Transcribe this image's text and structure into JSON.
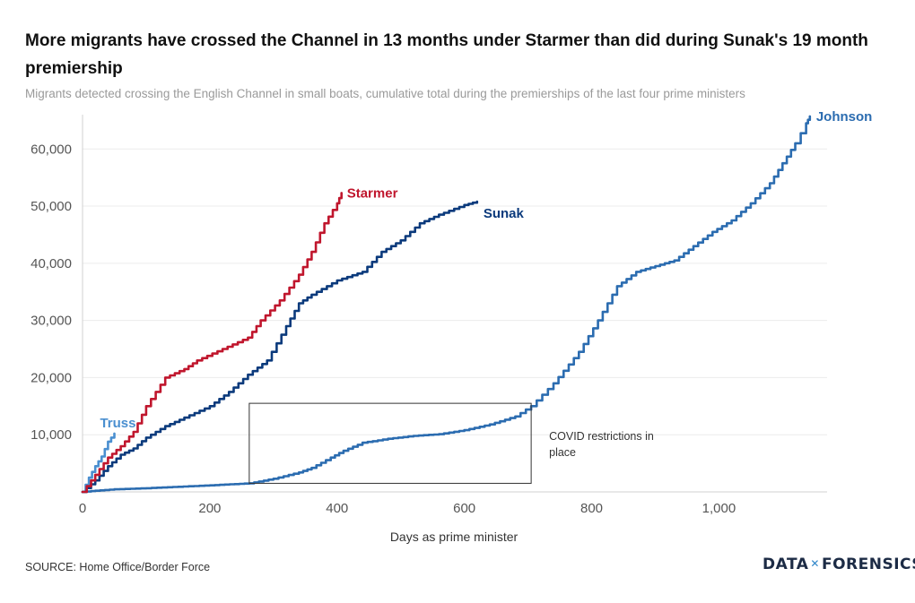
{
  "header": {
    "title": "More migrants have crossed the Channel in 13 months under Starmer than did during Sunak's 19 month premiership",
    "subtitle": "Migrants detected crossing the English Channel in small boats, cumulative total during the premierships of the last four prime ministers"
  },
  "footer": {
    "source": "SOURCE: Home Office/Border Force",
    "brand_left": "DATA",
    "brand_mark": "✕",
    "brand_right": "FORENSICS"
  },
  "chart_data": {
    "type": "line",
    "xlabel": "Days as prime minister",
    "ylabel": "",
    "xlim": [
      0,
      1170
    ],
    "ylim": [
      0,
      66000
    ],
    "xticks": [
      0,
      200,
      400,
      600,
      800,
      1000
    ],
    "xtick_labels": [
      "0",
      "200",
      "400",
      "600",
      "800",
      "1,000"
    ],
    "yticks": [
      10000,
      20000,
      30000,
      40000,
      50000,
      60000
    ],
    "ytick_labels": [
      "10,000",
      "20,000",
      "30,000",
      "40,000",
      "50,000",
      "60,000"
    ],
    "grid": "horizontal",
    "series": [
      {
        "name": "Johnson",
        "color": "#2b6cb0",
        "points": [
          [
            0,
            0
          ],
          [
            20,
            200
          ],
          [
            50,
            450
          ],
          [
            100,
            650
          ],
          [
            150,
            900
          ],
          [
            200,
            1150
          ],
          [
            262,
            1500
          ],
          [
            300,
            2300
          ],
          [
            340,
            3400
          ],
          [
            360,
            4200
          ],
          [
            390,
            6000
          ],
          [
            410,
            7200
          ],
          [
            440,
            8600
          ],
          [
            480,
            9300
          ],
          [
            520,
            9800
          ],
          [
            560,
            10100
          ],
          [
            600,
            10800
          ],
          [
            640,
            11800
          ],
          [
            680,
            13200
          ],
          [
            705,
            15000
          ],
          [
            740,
            19000
          ],
          [
            780,
            24500
          ],
          [
            810,
            30000
          ],
          [
            840,
            36000
          ],
          [
            870,
            38500
          ],
          [
            900,
            39500
          ],
          [
            930,
            40500
          ],
          [
            960,
            43000
          ],
          [
            990,
            45500
          ],
          [
            1020,
            47500
          ],
          [
            1050,
            50500
          ],
          [
            1080,
            54000
          ],
          [
            1100,
            57500
          ],
          [
            1120,
            61000
          ],
          [
            1137,
            64500
          ],
          [
            1143,
            65700
          ]
        ]
      },
      {
        "name": "Truss",
        "color": "#4a8fd0",
        "points": [
          [
            0,
            0
          ],
          [
            10,
            2500
          ],
          [
            20,
            4500
          ],
          [
            30,
            6200
          ],
          [
            40,
            8800
          ],
          [
            50,
            10200
          ]
        ]
      },
      {
        "name": "Sunak",
        "color": "#0b3a7c",
        "points": [
          [
            0,
            0
          ],
          [
            20,
            2000
          ],
          [
            40,
            4500
          ],
          [
            60,
            6500
          ],
          [
            80,
            7600
          ],
          [
            100,
            9500
          ],
          [
            130,
            11500
          ],
          [
            160,
            13000
          ],
          [
            200,
            15000
          ],
          [
            230,
            17500
          ],
          [
            260,
            20500
          ],
          [
            290,
            23000
          ],
          [
            320,
            29000
          ],
          [
            340,
            33000
          ],
          [
            360,
            34500
          ],
          [
            400,
            37000
          ],
          [
            440,
            38500
          ],
          [
            470,
            42000
          ],
          [
            500,
            44000
          ],
          [
            530,
            47000
          ],
          [
            560,
            48500
          ],
          [
            600,
            50200
          ],
          [
            620,
            50800
          ]
        ]
      },
      {
        "name": "Starmer",
        "color": "#c0162d",
        "points": [
          [
            0,
            0
          ],
          [
            20,
            3000
          ],
          [
            40,
            6000
          ],
          [
            60,
            8000
          ],
          [
            80,
            10500
          ],
          [
            100,
            15000
          ],
          [
            130,
            20000
          ],
          [
            160,
            21500
          ],
          [
            180,
            23000
          ],
          [
            220,
            25000
          ],
          [
            260,
            27000
          ],
          [
            280,
            30000
          ],
          [
            310,
            33500
          ],
          [
            340,
            38000
          ],
          [
            360,
            42000
          ],
          [
            380,
            47000
          ],
          [
            400,
            50500
          ],
          [
            407,
            52300
          ]
        ]
      }
    ],
    "annotations": [
      {
        "text": "COVID restrictions in place",
        "box_x": [
          262,
          705
        ],
        "box_y": [
          1500,
          15500
        ]
      }
    ]
  }
}
